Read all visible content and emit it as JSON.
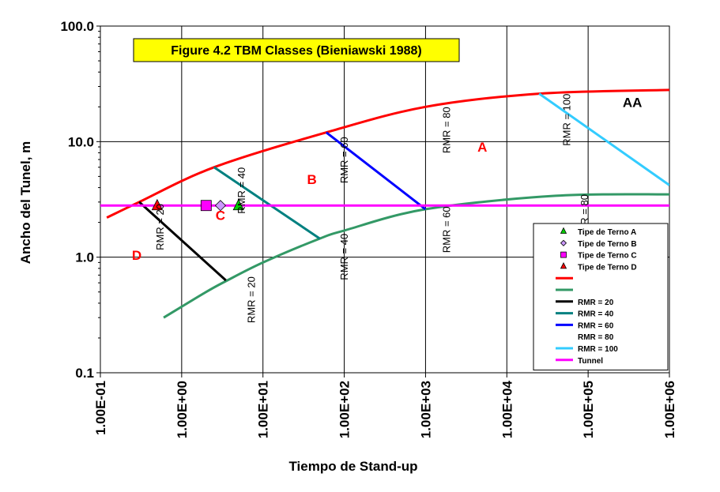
{
  "chart_data": {
    "type": "line",
    "title": "Figure 4.2 TBM Classes (Bieniawski 1988)",
    "xlabel": "Tiempo de Stand-up",
    "ylabel": "Ancho del Tunel, m",
    "x_scale": "log",
    "y_scale": "log",
    "xlim": [
      0.1,
      1000000
    ],
    "ylim": [
      0.1,
      100
    ],
    "x_ticks": [
      "1.00E-01",
      "1.00E+00",
      "1.00E+01",
      "1.00E+02",
      "1.00E+03",
      "1.00E+04",
      "1.00E+05",
      "1.00E+06"
    ],
    "y_ticks": [
      "0.1",
      "1.0",
      "10.0",
      "100.0"
    ],
    "grid": true,
    "legend_position": "lower-right",
    "colors": {
      "red": "#ff0000",
      "green": "#339966",
      "black": "#000000",
      "teal": "#008080",
      "blue": "#0000ff",
      "cyan": "#33ccff",
      "magenta": "#ff00ff",
      "title_bg": "#ffff00",
      "region_red": "#ff0000",
      "region_black": "#000000"
    },
    "series": [
      {
        "key": "upper",
        "color": "red",
        "x": [
          0.12,
          0.3,
          2.5,
          60,
          1000,
          25000,
          1000000
        ],
        "y": [
          2.2,
          3.0,
          6.0,
          12,
          20,
          26,
          28
        ]
      },
      {
        "key": "lower",
        "color": "green",
        "x": [
          0.6,
          2,
          3.5,
          10,
          50,
          100,
          1000,
          40000,
          1000000
        ],
        "y": [
          0.3,
          0.5,
          0.62,
          0.9,
          1.45,
          1.7,
          2.6,
          3.4,
          3.5
        ]
      },
      {
        "key": "rmr20",
        "color": "black",
        "x": [
          0.3,
          3.5
        ],
        "y": [
          3.0,
          0.63
        ]
      },
      {
        "key": "rmr40",
        "color": "teal",
        "x": [
          2.5,
          50
        ],
        "y": [
          6.0,
          1.45
        ]
      },
      {
        "key": "rmr60",
        "color": "blue",
        "x": [
          60,
          1000
        ],
        "y": [
          12,
          2.6
        ]
      },
      {
        "key": "rmr100",
        "color": "cyan",
        "x": [
          25000,
          1000000
        ],
        "y": [
          26,
          4.2
        ]
      },
      {
        "key": "tunnel",
        "color": "magenta",
        "x": [
          0.1,
          1000000
        ],
        "y": [
          2.8,
          2.8
        ]
      }
    ],
    "markers": [
      {
        "name": "Tipe de Terno A",
        "shape": "triangle",
        "color": "#00cc00",
        "x": 5,
        "y": 2.8
      },
      {
        "name": "Tipe de Terno B",
        "shape": "diamond",
        "color": "#cc99ff",
        "x": 3,
        "y": 2.8
      },
      {
        "name": "Tipe de Terno C",
        "shape": "square",
        "color": "#ff00ff",
        "x": 2,
        "y": 2.8
      },
      {
        "name": "Tipe de Terno D",
        "shape": "triangle",
        "color": "#ff0000",
        "x": 0.5,
        "y": 2.8
      }
    ],
    "rmr_labels": [
      {
        "text": "RMR = 20",
        "x": 0.6,
        "y": 2.9
      },
      {
        "text": "RMR = 40",
        "x": 6,
        "y": 6
      },
      {
        "text": "RMR = 60",
        "x": 2000,
        "y": 2.75
      },
      {
        "text": "RMR = 80",
        "x": 2000,
        "y": 20
      },
      {
        "text": "RMR = 100",
        "x": 60000,
        "y": 26
      },
      {
        "text": "RMR = 60",
        "x": 110,
        "y": 11
      },
      {
        "text": "RMR = 40",
        "x": 110,
        "y": 1.6
      },
      {
        "text": "RMR = 20",
        "x": 8,
        "y": 0.68
      },
      {
        "text": "RMR = 80",
        "x": 100000,
        "y": 3.5
      }
    ],
    "regions": [
      {
        "text": "AA",
        "color": "region_black",
        "x": 350000,
        "y": 20
      },
      {
        "text": "A",
        "color": "region_red",
        "x": 5000,
        "y": 8.2
      },
      {
        "text": "B",
        "color": "region_red",
        "x": 40,
        "y": 4.3
      },
      {
        "text": "C",
        "color": "region_red",
        "x": 3,
        "y": 2.1
      },
      {
        "text": "D",
        "color": "region_red",
        "x": 0.28,
        "y": 0.95
      }
    ],
    "legend": [
      {
        "kind": "marker",
        "shape": "triangle",
        "color": "#00cc00",
        "label": "Tipe de Terno A"
      },
      {
        "kind": "marker",
        "shape": "diamond",
        "color": "#cc99ff",
        "label": "Tipe de Terno B"
      },
      {
        "kind": "marker",
        "shape": "square",
        "color": "#ff00ff",
        "label": "Tipe de Terno C"
      },
      {
        "kind": "marker",
        "shape": "triangle",
        "color": "#ff0000",
        "label": "Tipe de Terno D"
      },
      {
        "kind": "line",
        "color": "#ff0000",
        "label": ""
      },
      {
        "kind": "line",
        "color": "#339966",
        "label": ""
      },
      {
        "kind": "line",
        "color": "#000000",
        "label": "RMR = 20"
      },
      {
        "kind": "line",
        "color": "#008080",
        "label": "RMR = 40"
      },
      {
        "kind": "line",
        "color": "#0000ff",
        "label": "RMR = 60"
      },
      {
        "kind": "none",
        "color": "",
        "label": "RMR = 80"
      },
      {
        "kind": "line",
        "color": "#33ccff",
        "label": "RMR = 100"
      },
      {
        "kind": "line",
        "color": "#ff00ff",
        "label": "Tunnel"
      }
    ]
  }
}
